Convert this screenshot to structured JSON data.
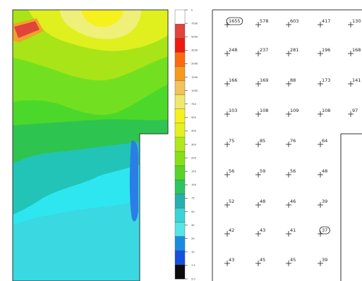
{
  "color_scale": {
    "colors": [
      "#ffffff",
      "#e0443a",
      "#ee1a10",
      "#ff6a10",
      "#f79a1c",
      "#f2c35a",
      "#f0e86c",
      "#f6f11c",
      "#e4f020",
      "#b0e81a",
      "#86e018",
      "#58d428",
      "#2ec45e",
      "#28b0b0",
      "#3ad4d4",
      "#56e6e6",
      "#1a8ce0",
      "#1650e0",
      "#0c0c0c"
    ],
    "labels": [
      "k",
      "7500",
      "5000",
      "3500",
      "2000",
      "1500",
      "1000",
      "750",
      "500",
      "400",
      "300",
      "200",
      "150",
      "100",
      "75",
      "50",
      "30",
      "20",
      "10",
      "7.5",
      "5.0"
    ]
  },
  "measurements": {
    "rows": [
      [
        {
          "value": "1655",
          "highlight": true
        },
        {
          "value": "578"
        },
        {
          "value": "603"
        },
        {
          "value": "417"
        },
        {
          "value": "130"
        }
      ],
      [
        {
          "value": "248"
        },
        {
          "value": "237"
        },
        {
          "value": "281"
        },
        {
          "value": "196"
        },
        {
          "value": "168"
        }
      ],
      [
        {
          "value": "166"
        },
        {
          "value": "169"
        },
        {
          "value": "88"
        },
        {
          "value": "173"
        },
        {
          "value": "141"
        }
      ],
      [
        {
          "value": "103"
        },
        {
          "value": "108"
        },
        {
          "value": "109"
        },
        {
          "value": "108"
        },
        {
          "value": "97"
        }
      ],
      [
        {
          "value": "75"
        },
        {
          "value": "85"
        },
        {
          "value": "76"
        },
        {
          "value": "64"
        }
      ],
      [
        {
          "value": "56"
        },
        {
          "value": "59"
        },
        {
          "value": "56"
        },
        {
          "value": "48"
        }
      ],
      [
        {
          "value": "52"
        },
        {
          "value": "48"
        },
        {
          "value": "46"
        },
        {
          "value": "39"
        }
      ],
      [
        {
          "value": "42"
        },
        {
          "value": "43"
        },
        {
          "value": "41"
        },
        {
          "value": "37",
          "highlight": true
        }
      ],
      [
        {
          "value": "43"
        },
        {
          "value": "45"
        },
        {
          "value": "45"
        },
        {
          "value": "39"
        }
      ]
    ]
  }
}
